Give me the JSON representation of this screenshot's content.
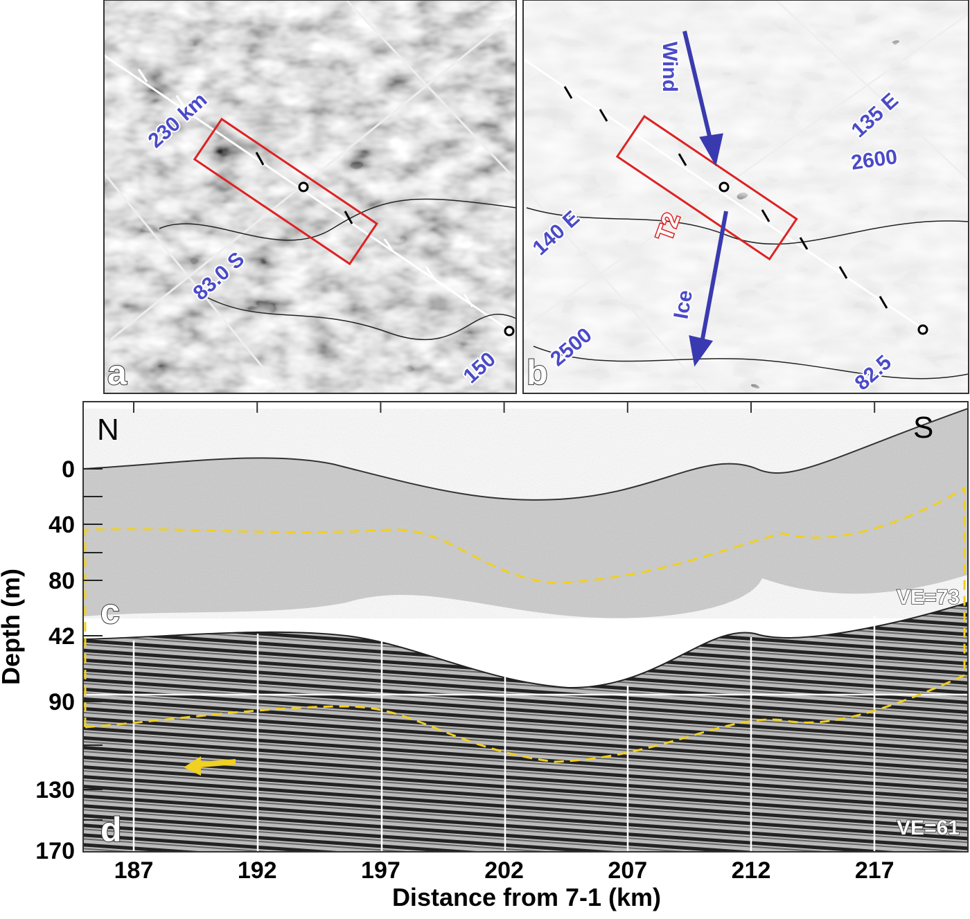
{
  "panel_a": {
    "letter": "a",
    "labels": [
      "230 km",
      "83.0 S",
      "150"
    ]
  },
  "panel_b": {
    "letter": "b",
    "wind": "Wind",
    "ice": "Ice",
    "transect": "T2",
    "labels": [
      "135 E",
      "2600",
      "140 E",
      "2500",
      "82.5"
    ]
  },
  "profile": {
    "north": "N",
    "south": "S",
    "panel_c": "c",
    "panel_d": "d",
    "ve_c": "VE=73",
    "ve_d": "VE=61",
    "y_label": "Depth (m)",
    "y_ticks_c": [
      "0",
      "40",
      "80"
    ],
    "y_ticks_d": [
      "42",
      "90",
      "130",
      "170"
    ],
    "x_label": "Distance from 7-1 (km)",
    "x_ticks": [
      "187",
      "192",
      "197",
      "202",
      "207",
      "212",
      "217"
    ]
  }
}
